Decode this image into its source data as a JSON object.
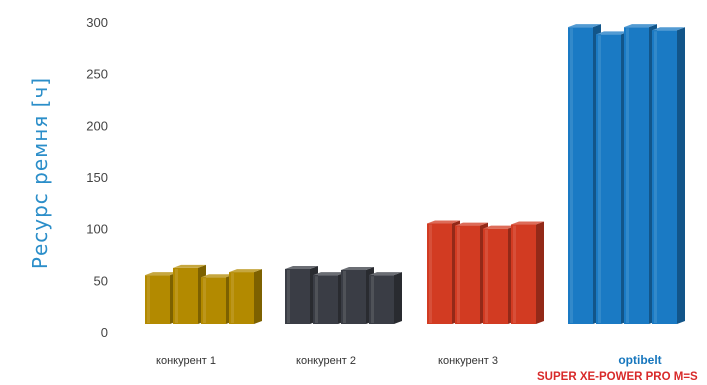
{
  "colors": {
    "ylabel": "#2b8ec9",
    "tick": "#444444",
    "category_text": "#333333",
    "brand": "#1676bd",
    "product": "#d82a2a"
  },
  "chart_data": {
    "type": "bar",
    "ylabel": "Ресурс ремня [ч]",
    "xlabel": "",
    "ylim": [
      0,
      300
    ],
    "yticks": [
      0,
      50,
      100,
      150,
      200,
      250,
      300
    ],
    "grid": false,
    "legend": "none",
    "categories": [
      "конкурент 1",
      "конкурент 2",
      "конкурент 3",
      "optibelt"
    ],
    "category_sublabels": [
      "",
      "",
      "",
      "SUPER XE-POWER PRO M=S"
    ],
    "groups": [
      {
        "category": "конкурент 1",
        "color": "#b38a00",
        "values": [
          55,
          62,
          53,
          58
        ]
      },
      {
        "category": "конкурент 2",
        "color": "#3a3d45",
        "values": [
          61,
          55,
          60,
          55
        ]
      },
      {
        "category": "конкурент 3",
        "color": "#d23b22",
        "values": [
          105,
          103,
          100,
          104
        ]
      },
      {
        "category": "optibelt",
        "color": "#1a7ac4",
        "values": [
          295,
          288,
          295,
          292
        ]
      }
    ]
  }
}
